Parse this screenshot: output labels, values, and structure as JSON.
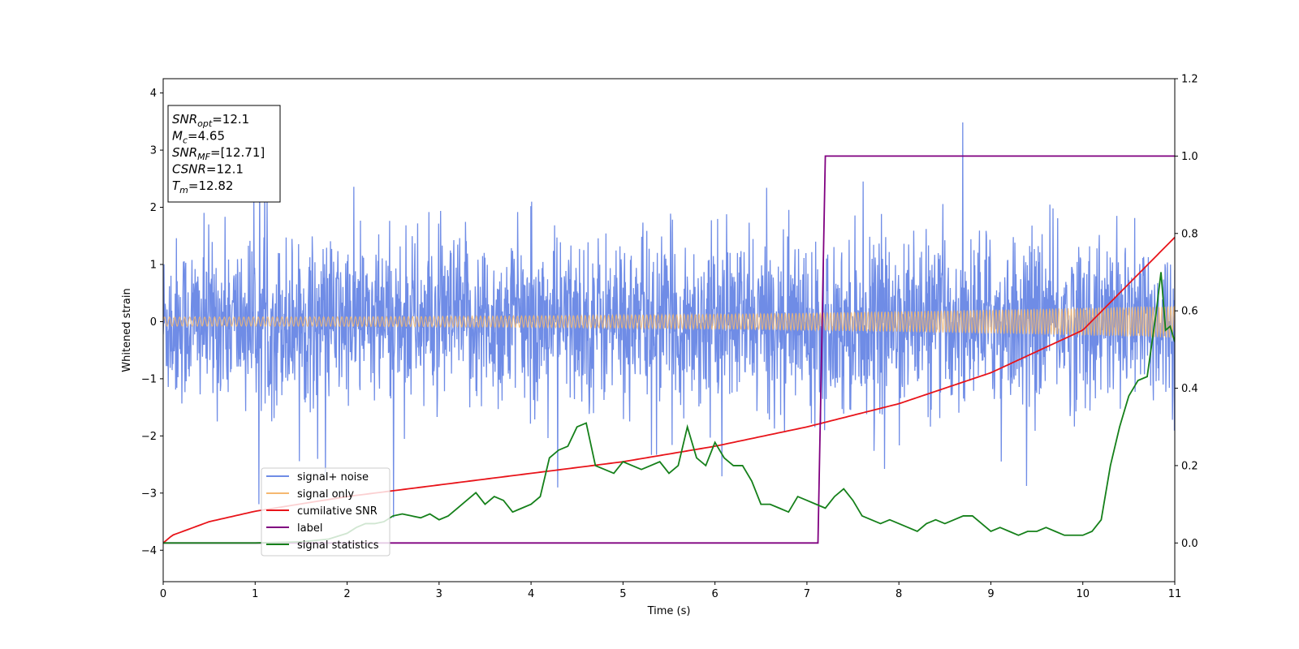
{
  "chart_data": {
    "type": "line",
    "xlabel": "Time (s)",
    "ylabel": "Whitened strain",
    "xlim": [
      0,
      11
    ],
    "ylim": [
      -4.55,
      4.25
    ],
    "y2lim": [
      -0.1,
      1.2
    ],
    "x_ticks": [
      0,
      1,
      2,
      3,
      4,
      5,
      6,
      7,
      8,
      9,
      10,
      11
    ],
    "y_ticks": [
      -4,
      -3,
      -2,
      -1,
      0,
      1,
      2,
      3,
      4
    ],
    "y2_ticks": [
      0.0,
      0.2,
      0.4,
      0.6,
      0.8,
      1.0,
      1.2
    ],
    "y2_tick_labels": [
      "0.0",
      "0.2",
      "0.4",
      "0.6",
      "0.8",
      "1.0",
      "1.2"
    ],
    "annotation": {
      "lines": [
        {
          "base": "SNR",
          "sub": "opt",
          "value": "=12.1"
        },
        {
          "base": "M",
          "sub": "c",
          "value": "=4.65"
        },
        {
          "base": "SNR",
          "sub": "MF",
          "value": "=[12.71]"
        },
        {
          "base": "CSNR",
          "sub": "",
          "value": "=12.1"
        },
        {
          "base": "T",
          "sub": "m",
          "value": "=12.82"
        }
      ]
    },
    "legend": {
      "position": "lower-left",
      "entries": [
        "signal+ noise",
        "signal only",
        "cumilative SNR",
        "label",
        "signal statistics"
      ]
    },
    "series": [
      {
        "name": "signal+ noise",
        "axis": "left",
        "color": "#6f8ce6",
        "kind": "noise",
        "x_range": [
          0,
          11
        ],
        "typical_amplitude": 1.3,
        "peak_max": 3.87,
        "peak_min": -4.18
      },
      {
        "name": "signal only",
        "axis": "left",
        "color": "#f5b870",
        "kind": "chirp",
        "x_range": [
          0,
          11
        ],
        "start_amplitude": 0.08,
        "end_amplitude": 0.28
      },
      {
        "name": "cumilative SNR",
        "axis": "right",
        "color": "#e8141a",
        "x": [
          0,
          0.1,
          0.5,
          1,
          2,
          3,
          4,
          5,
          6,
          7,
          8,
          9,
          10,
          11
        ],
        "values": [
          0.0,
          0.02,
          0.055,
          0.082,
          0.12,
          0.15,
          0.18,
          0.21,
          0.25,
          0.3,
          0.36,
          0.44,
          0.55,
          0.79
        ]
      },
      {
        "name": "label",
        "axis": "right",
        "color": "#800080",
        "x": [
          0,
          7.12,
          7.2,
          11
        ],
        "values": [
          0,
          0,
          1,
          1
        ]
      },
      {
        "name": "signal statistics",
        "axis": "right",
        "color": "#15801a",
        "x": [
          0,
          0.5,
          1,
          1.5,
          1.8,
          2.0,
          2.1,
          2.2,
          2.3,
          2.4,
          2.5,
          2.6,
          2.7,
          2.8,
          2.9,
          3.0,
          3.1,
          3.2,
          3.3,
          3.4,
          3.5,
          3.6,
          3.7,
          3.8,
          3.9,
          4.0,
          4.1,
          4.2,
          4.3,
          4.4,
          4.5,
          4.6,
          4.7,
          4.8,
          4.9,
          5.0,
          5.1,
          5.2,
          5.3,
          5.4,
          5.5,
          5.6,
          5.7,
          5.8,
          5.9,
          6.0,
          6.1,
          6.2,
          6.3,
          6.4,
          6.5,
          6.6,
          6.7,
          6.8,
          6.9,
          7.0,
          7.1,
          7.2,
          7.3,
          7.4,
          7.5,
          7.6,
          7.7,
          7.8,
          7.9,
          8.0,
          8.1,
          8.2,
          8.3,
          8.4,
          8.5,
          8.6,
          8.7,
          8.8,
          8.9,
          9.0,
          9.1,
          9.2,
          9.3,
          9.4,
          9.5,
          9.6,
          9.7,
          9.8,
          9.9,
          10.0,
          10.1,
          10.2,
          10.3,
          10.4,
          10.5,
          10.6,
          10.7,
          10.8,
          10.85,
          10.9,
          10.95,
          11.0
        ],
        "values": [
          0.0,
          0.0,
          0.0,
          0.003,
          0.01,
          0.025,
          0.04,
          0.05,
          0.05,
          0.055,
          0.07,
          0.075,
          0.07,
          0.065,
          0.075,
          0.06,
          0.07,
          0.09,
          0.11,
          0.13,
          0.1,
          0.12,
          0.11,
          0.08,
          0.09,
          0.1,
          0.12,
          0.22,
          0.24,
          0.25,
          0.3,
          0.31,
          0.2,
          0.19,
          0.18,
          0.21,
          0.2,
          0.19,
          0.2,
          0.21,
          0.18,
          0.2,
          0.3,
          0.22,
          0.2,
          0.26,
          0.22,
          0.2,
          0.2,
          0.16,
          0.1,
          0.1,
          0.09,
          0.08,
          0.12,
          0.11,
          0.1,
          0.09,
          0.12,
          0.14,
          0.11,
          0.07,
          0.06,
          0.05,
          0.06,
          0.05,
          0.04,
          0.03,
          0.05,
          0.06,
          0.05,
          0.06,
          0.07,
          0.07,
          0.05,
          0.03,
          0.04,
          0.03,
          0.02,
          0.03,
          0.03,
          0.04,
          0.03,
          0.02,
          0.02,
          0.02,
          0.03,
          0.06,
          0.2,
          0.3,
          0.38,
          0.42,
          0.43,
          0.6,
          0.7,
          0.55,
          0.56,
          0.52
        ]
      }
    ]
  }
}
